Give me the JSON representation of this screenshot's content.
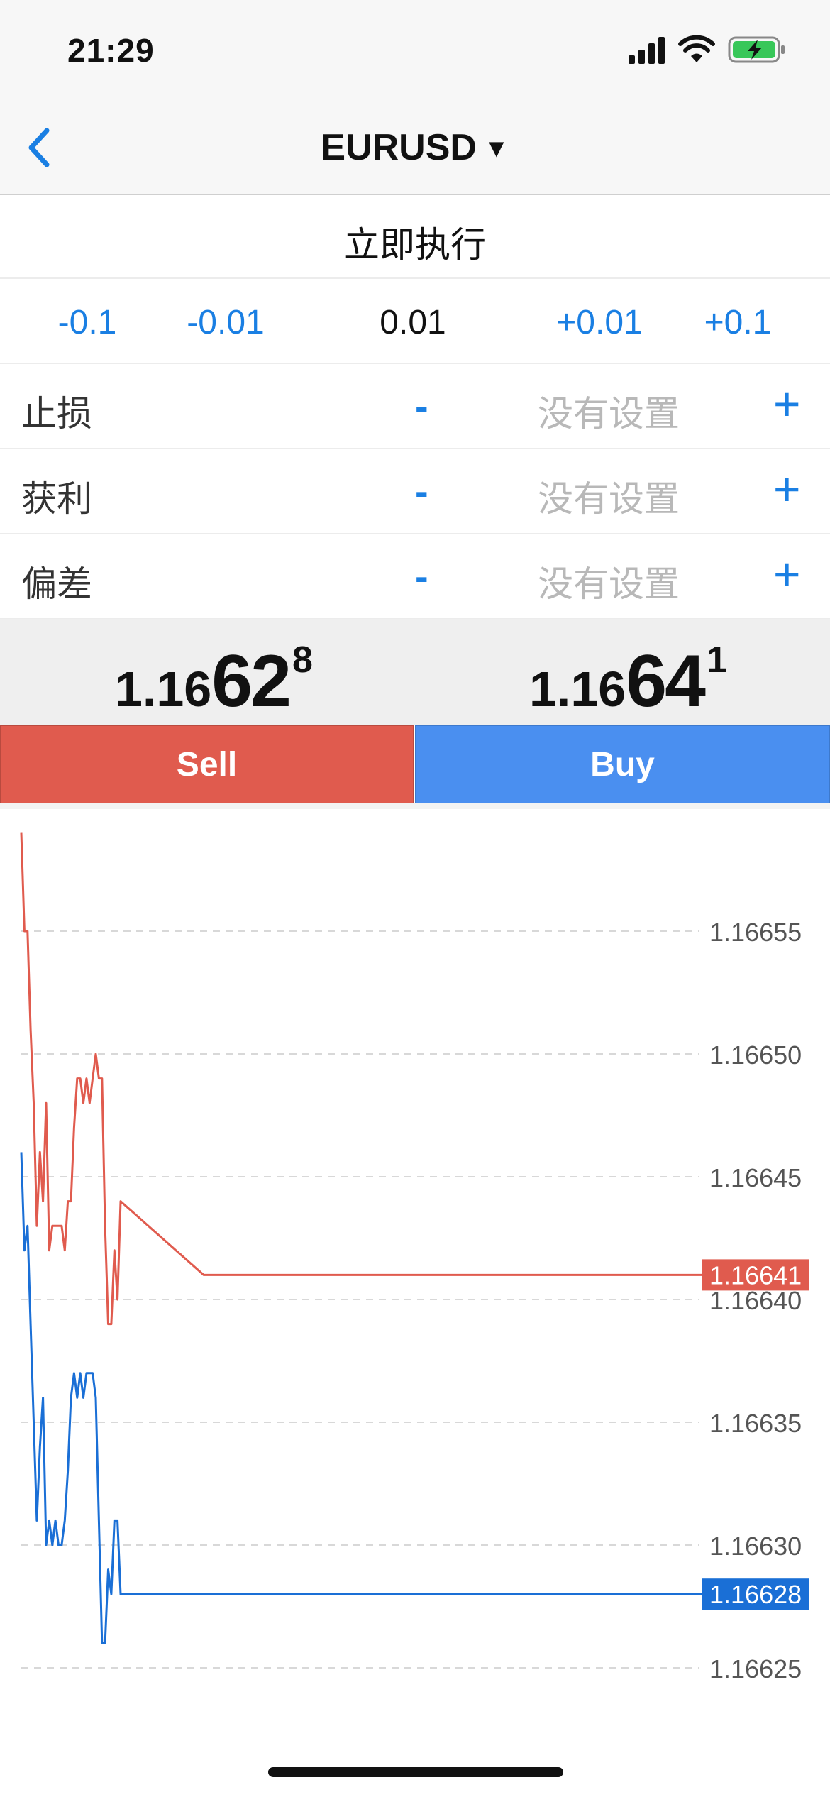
{
  "status": {
    "time": "21:29"
  },
  "nav": {
    "symbol": "EURUSD",
    "caret": "▼"
  },
  "mode": {
    "label": "立即执行"
  },
  "volume": {
    "buttons": [
      "-0.1",
      "-0.01",
      "+0.01",
      "+0.1"
    ],
    "value": "0.01"
  },
  "params": [
    {
      "label": "止损",
      "minus": "-",
      "value": "没有设置",
      "plus": "+"
    },
    {
      "label": "获利",
      "minus": "-",
      "value": "没有设置",
      "plus": "+"
    },
    {
      "label": "偏差",
      "minus": "-",
      "value": "没有设置",
      "plus": "+"
    }
  ],
  "prices": {
    "sell": {
      "prefix": "1.16",
      "big": "62",
      "sup": "8"
    },
    "buy": {
      "prefix": "1.16",
      "big": "64",
      "sup": "1"
    }
  },
  "buttons": {
    "sell": "Sell",
    "buy": "Buy"
  },
  "chart_data": {
    "type": "line",
    "y_tick_labels": [
      "1.16655",
      "1.16650",
      "1.16645",
      "1.16640",
      "1.16635",
      "1.16630",
      "1.16625"
    ],
    "y_ticks": [
      1.16655,
      1.1665,
      1.16645,
      1.1664,
      1.16635,
      1.1663,
      1.16625
    ],
    "grid": true,
    "series": [
      {
        "color": "#e05b4e",
        "last_label": "1.16641",
        "last": 1.16641,
        "values": [
          1.16659,
          1.16655,
          1.16655,
          1.16651,
          1.16648,
          1.16643,
          1.16646,
          1.16644,
          1.16648,
          1.16642,
          1.16643,
          1.16643,
          1.16643,
          1.16643,
          1.16642,
          1.16644,
          1.16644,
          1.16647,
          1.16649,
          1.16649,
          1.16648,
          1.16649,
          1.16648,
          1.16649,
          1.1665,
          1.16649,
          1.16649,
          1.16643,
          1.16639,
          1.16639,
          1.16642,
          1.1664,
          1.16644,
          1.16641,
          1.16641,
          1.16641,
          1.16641,
          1.16641,
          1.16641,
          1.16641
        ]
      },
      {
        "color": "#1a6fd6",
        "last_label": "1.16628",
        "last": 1.16628,
        "values": [
          1.16646,
          1.16642,
          1.16643,
          1.16639,
          1.16635,
          1.16631,
          1.16634,
          1.16636,
          1.1663,
          1.16631,
          1.1663,
          1.16631,
          1.1663,
          1.1663,
          1.16631,
          1.16633,
          1.16636,
          1.16637,
          1.16636,
          1.16637,
          1.16636,
          1.16637,
          1.16637,
          1.16637,
          1.16636,
          1.16631,
          1.16626,
          1.16626,
          1.16629,
          1.16628,
          1.16631,
          1.16631,
          1.16628,
          1.16628,
          1.16628,
          1.16628,
          1.16628,
          1.16628,
          1.16628,
          1.16628
        ]
      }
    ]
  }
}
